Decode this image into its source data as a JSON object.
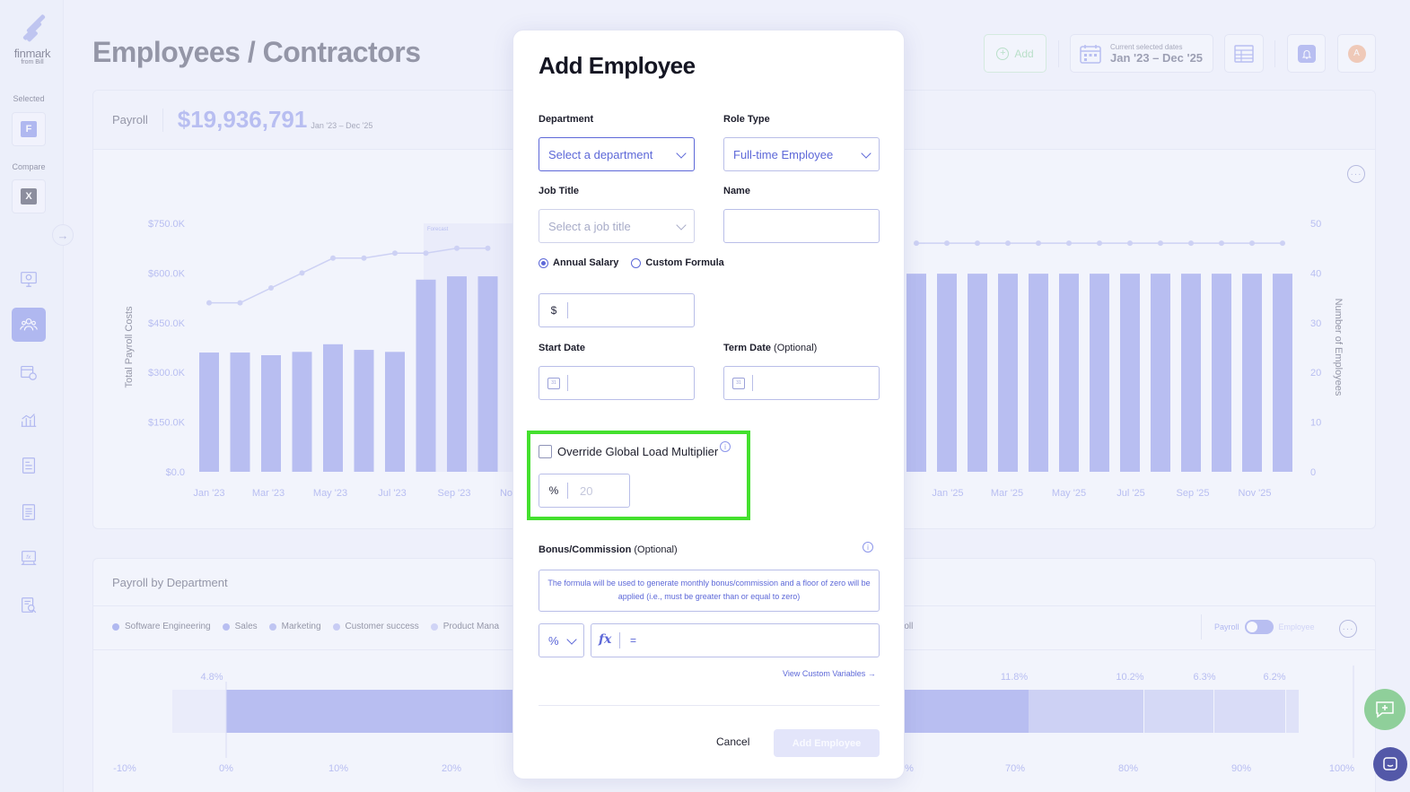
{
  "sidebar": {
    "logo_name": "finmark",
    "logo_from": "from Bill",
    "selected_label": "Selected",
    "selected_chip": "F",
    "compare_label": "Compare",
    "compare_chip": "X",
    "nav_icons": [
      "dashboard-icon",
      "people-icon",
      "calendar-money-icon",
      "bar-chart-icon",
      "report-icon",
      "document-icon",
      "formula-icon",
      "search-doc-icon"
    ]
  },
  "header": {
    "title": "Employees / Contractors",
    "add_label": "Add",
    "dates_caption": "Current selected dates",
    "dates_value": "Jan '23 – Dec '25",
    "avatar_letter": "A"
  },
  "payroll": {
    "label": "Payroll",
    "amount": "$19,936,791",
    "range": "Jan '23 – Dec '25"
  },
  "chart_data": {
    "type": "bar",
    "ylabel": "Total Payroll Costs",
    "y2label": "Number of Employees",
    "y_ticks": [
      "$0.0",
      "$150.0K",
      "$300.0K",
      "$450.0K",
      "$600.0K",
      "$750.0K"
    ],
    "y2_ticks": [
      "0",
      "10",
      "20",
      "30",
      "40",
      "50"
    ],
    "ylim": [
      0,
      750
    ],
    "y2lim": [
      0,
      50
    ],
    "forecast_label": "Forecast",
    "x_tick_labels": [
      "Jan '23",
      "Mar '23",
      "May '23",
      "Jul '23",
      "Sep '23",
      "No",
      "Jan '25",
      "Mar '25",
      "May '25",
      "Jul '25",
      "Sep '25",
      "Nov '25"
    ],
    "bars_left": [
      360,
      360,
      352,
      362,
      385,
      368,
      362,
      580,
      590,
      590
    ],
    "bars_right": [
      598,
      598,
      598,
      598,
      598,
      598,
      598,
      598,
      598,
      598,
      598,
      598,
      598
    ],
    "line_left": [
      34,
      34,
      37,
      40,
      43,
      43,
      44,
      44,
      45,
      45
    ],
    "line_right": [
      46,
      46,
      46,
      46,
      46,
      46,
      46,
      46,
      46,
      46,
      46,
      46,
      46
    ],
    "colors": {
      "bar": "#8c96ea",
      "line": "#b3b9ef",
      "forecast": "#e7e9f9"
    }
  },
  "department": {
    "title": "Payroll by Department",
    "legend": [
      {
        "name": "Software Engineering",
        "color": "#7f8ae8"
      },
      {
        "name": "Sales",
        "color": "#8c96ea"
      },
      {
        "name": "Marketing",
        "color": "#9aa2ec"
      },
      {
        "name": "Customer success",
        "color": "#a9b0ef"
      },
      {
        "name": "Product Mana",
        "color": "#b8bdf2"
      }
    ],
    "legend_tail": "roll",
    "toggle_on": "Payroll",
    "toggle_off": "Employee",
    "bar_labels": [
      "4.8%",
      "11.8%",
      "10.2%",
      "6.3%",
      "6.2%"
    ],
    "axis_ticks": [
      "-10%",
      "0%",
      "10%",
      "20%",
      "%",
      "70%",
      "80%",
      "90%",
      "100%"
    ]
  },
  "modal": {
    "title": "Add Employee",
    "department_label": "Department",
    "department_value": "Select a department",
    "role_label": "Role Type",
    "role_value": "Full-time Employee",
    "job_label": "Job Title",
    "job_placeholder": "Select a job title",
    "name_label": "Name",
    "radio_salary": "Annual Salary",
    "radio_formula": "Custom Formula",
    "currency_symbol": "$",
    "start_label": "Start Date",
    "term_label": "Term Date",
    "optional": "(Optional)",
    "override_label": "Override Global Load Multiplier",
    "percent_symbol": "%",
    "multiplier_placeholder": "20",
    "bonus_label": "Bonus/Commission",
    "bonus_note": "The formula will be used to generate monthly bonus/commission and a floor of zero will be applied (i.e., must be greater than or equal to zero)",
    "bonus_unit": "%",
    "formula_icon": "fx",
    "formula_value": "=",
    "custom_vars_link": "View Custom Variables →",
    "cancel_label": "Cancel",
    "submit_label": "Add Employee"
  }
}
